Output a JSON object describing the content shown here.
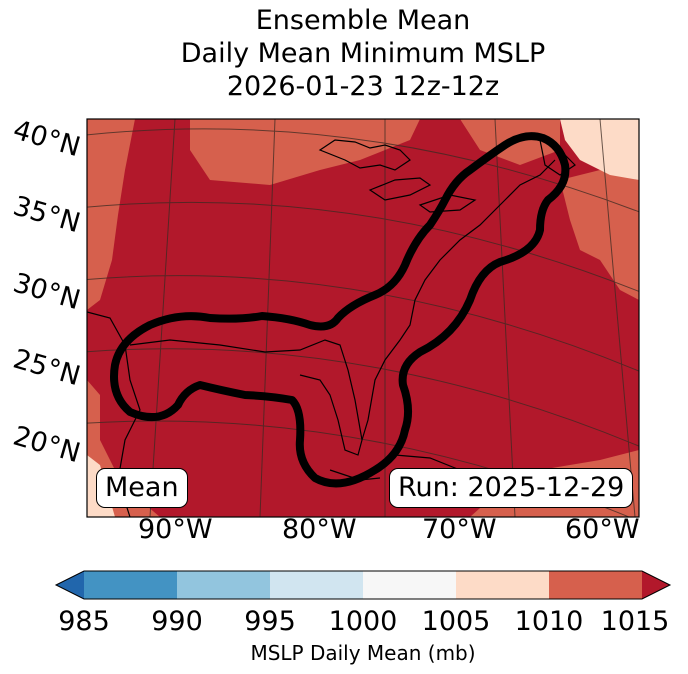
{
  "title": {
    "line1": "Ensemble Mean",
    "line2": "Daily Mean Minimum MSLP",
    "line3": "2026-01-23 12z-12z"
  },
  "map": {
    "lat_labels": [
      "40°N",
      "35°N",
      "30°N",
      "25°N",
      "20°N"
    ],
    "lon_labels": [
      "90°W",
      "80°W",
      "70°W",
      "60°W"
    ],
    "mean_label": "Mean",
    "run_label": "Run: 2025-12-29",
    "field_colors": {
      "1015_plus": "#b2182b",
      "1010_1015": "#d6604d",
      "1005_1010": "#fddbc7"
    },
    "contour_color": "#000000"
  },
  "colorbar": {
    "ticks": [
      "985",
      "990",
      "995",
      "1000",
      "1005",
      "1010",
      "1015"
    ],
    "colors": [
      "#4393c3",
      "#92c5de",
      "#d1e5f0",
      "#f7f7f7",
      "#fddbc7",
      "#d6604d"
    ],
    "under_color": "#2166ac",
    "over_color": "#b2182b",
    "label": "MSLP Daily Mean (mb)"
  }
}
